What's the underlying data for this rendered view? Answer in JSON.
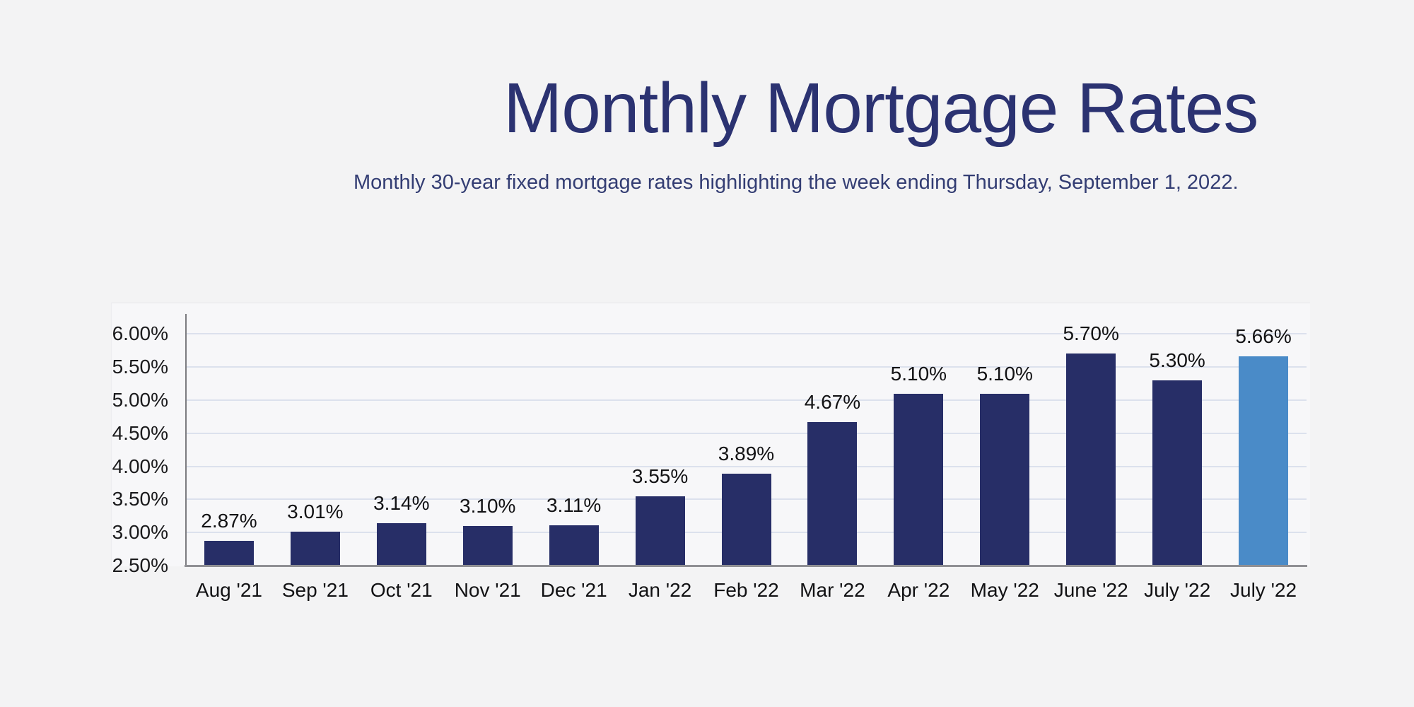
{
  "header": {
    "title": "Monthly Mortgage Rates",
    "subtitle": "Monthly 30-year fixed mortgage rates highlighting the week ending Thursday, September 1, 2022.",
    "title_color": "#2b3271",
    "subtitle_color": "#333d73"
  },
  "chart_data": {
    "type": "bar",
    "title": "Monthly Mortgage Rates",
    "subtitle": "Monthly 30-year fixed mortgage rates highlighting the week ending Thursday, September 1, 2022.",
    "categories": [
      "Aug '21",
      "Sep '21",
      "Oct '21",
      "Nov '21",
      "Dec '21",
      "Jan '22",
      "Feb '22",
      "Mar '22",
      "Apr '22",
      "May '22",
      "June '22",
      "July '22",
      "July '22"
    ],
    "values": [
      2.87,
      3.01,
      3.14,
      3.1,
      3.11,
      3.55,
      3.89,
      4.67,
      5.1,
      5.1,
      5.7,
      5.3,
      5.66
    ],
    "data_labels": [
      "2.87%",
      "3.01%",
      "3.14%",
      "3.10%",
      "3.11%",
      "3.55%",
      "3.89%",
      "4.67%",
      "5.10%",
      "5.10%",
      "5.70%",
      "5.30%",
      "5.66%"
    ],
    "y_tick_labels": [
      "6.00%",
      "5.50%",
      "5.00%",
      "4.50%",
      "4.00%",
      "3.50%",
      "3.00%",
      "2.50%"
    ],
    "y_tick_values": [
      6.0,
      5.5,
      5.0,
      4.5,
      4.0,
      3.5,
      3.0,
      2.5
    ],
    "ylim": [
      2.5,
      6.0
    ],
    "xlabel": "",
    "ylabel": "",
    "grid": true,
    "legend": "none",
    "bar_color": "#272e67",
    "highlight_color": "#4a8bc8",
    "highlight_index": 12,
    "gridline_color": "#dce1ed",
    "axis_color": "#7c7c80",
    "baseline_color": "#909094",
    "background_color": "#f3f3f4",
    "plot_panel_color": "#f7f7f9"
  }
}
